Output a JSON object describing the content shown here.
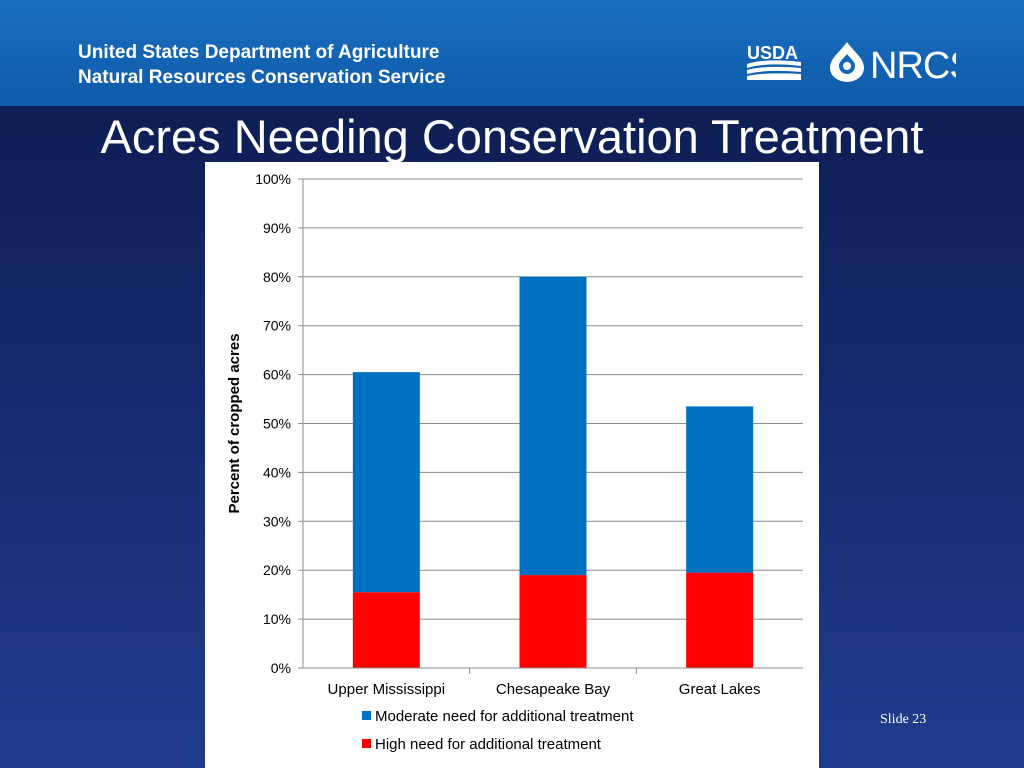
{
  "header": {
    "agency_line1": "United States Department of Agriculture",
    "agency_line2": "Natural Resources Conservation Service",
    "usda_logo_text": "USDA",
    "nrcs_logo_text": "NRCS"
  },
  "slide": {
    "title": "Acres Needing Conservation Treatment",
    "number": "Slide 23"
  },
  "colors": {
    "moderate": "#0070c0",
    "high": "#ff0000",
    "header_band": "#1466b8",
    "background": "#14286a"
  },
  "chart_data": {
    "type": "bar",
    "stacked": true,
    "categories": [
      "Upper Mississippi",
      "Chesapeake Bay",
      "Great Lakes"
    ],
    "series": [
      {
        "name": "High need for additional treatment",
        "values": [
          15.5,
          19,
          19.5
        ]
      },
      {
        "name": "Moderate need for additional treatment",
        "values": [
          45,
          61,
          34
        ]
      }
    ],
    "ylabel": "Percent of cropped acres",
    "xlabel": "",
    "ylim": [
      0,
      100
    ],
    "yticks": [
      "0%",
      "10%",
      "20%",
      "30%",
      "40%",
      "50%",
      "60%",
      "70%",
      "80%",
      "90%",
      "100%"
    ],
    "legend": [
      "Moderate need for additional treatment",
      "High need for additional treatment"
    ],
    "legend_position": "bottom",
    "grid": true
  }
}
